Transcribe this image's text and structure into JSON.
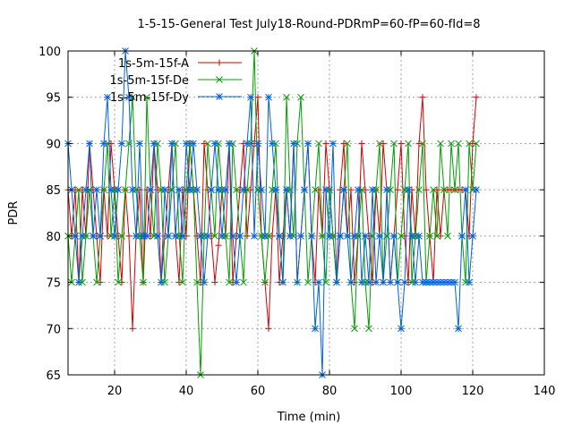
{
  "chart_data": {
    "type": "line",
    "title": "1-5-15-General Test July18-Round-PDRmP=60-fP=60-fId=8",
    "xlabel": "Time (min)",
    "ylabel": "PDR",
    "xlim": [
      7,
      140
    ],
    "ylim": [
      65,
      100
    ],
    "xticks": [
      20,
      40,
      60,
      80,
      100,
      120,
      140
    ],
    "yticks": [
      65,
      70,
      75,
      80,
      85,
      90,
      95,
      100
    ],
    "xtick_labels": [
      "20",
      "40",
      "60",
      "80",
      "100",
      "120",
      "140"
    ],
    "ytick_labels": [
      "65",
      "70",
      "75",
      "80",
      "85",
      "90",
      "95",
      "100"
    ],
    "grid": true,
    "legend_position": "top-left",
    "series": [
      {
        "name": "1s-5m-15f-A",
        "color": "#d40000",
        "marker": "plus",
        "x": [
          7,
          8,
          9,
          10,
          11,
          12,
          13,
          14,
          15,
          16,
          17,
          18,
          19,
          20,
          21,
          22,
          23,
          24,
          25,
          26,
          27,
          28,
          29,
          30,
          31,
          32,
          33,
          34,
          35,
          36,
          37,
          38,
          39,
          40,
          41,
          42,
          43,
          44,
          45,
          46,
          47,
          48,
          49,
          50,
          51,
          52,
          53,
          54,
          55,
          56,
          57,
          58,
          59,
          60,
          61,
          62,
          63,
          64,
          65,
          66,
          67,
          68,
          69,
          70,
          71,
          72,
          73,
          74,
          75,
          76,
          77,
          78,
          79,
          80,
          81,
          82,
          83,
          84,
          85,
          86,
          87,
          88,
          89,
          90,
          91,
          92,
          93,
          94,
          95,
          96,
          97,
          98,
          99,
          100,
          101,
          102,
          103,
          104,
          105,
          106,
          107,
          108,
          109,
          110,
          111,
          112,
          113,
          114,
          115,
          116,
          117,
          118,
          119,
          120,
          121
        ],
        "values": [
          85,
          80,
          85,
          75,
          85,
          80,
          90,
          85,
          80,
          75,
          85,
          80,
          90,
          85,
          80,
          75,
          85,
          80,
          70,
          80,
          85,
          75,
          85,
          80,
          90,
          85,
          75,
          80,
          85,
          90,
          80,
          75,
          85,
          80,
          90,
          85,
          80,
          75,
          90,
          85,
          80,
          75,
          79,
          85,
          80,
          90,
          75,
          80,
          85,
          90,
          80,
          85,
          90,
          95,
          80,
          75,
          70,
          80,
          85,
          75,
          80,
          85,
          80,
          90,
          75,
          80,
          85,
          90,
          80,
          75,
          85,
          80,
          90,
          85,
          80,
          75,
          85,
          90,
          80,
          85,
          75,
          80,
          90,
          85,
          80,
          75,
          85,
          80,
          90,
          85,
          75,
          80,
          85,
          90,
          80,
          75,
          85,
          80,
          90,
          95,
          85,
          80,
          75,
          85,
          80,
          85,
          85,
          85,
          85,
          85,
          85,
          85,
          80,
          90,
          95
        ]
      },
      {
        "name": "1s-5m-15f-De",
        "color": "#00a000",
        "marker": "x",
        "x": [
          7,
          8,
          9,
          10,
          11,
          12,
          13,
          14,
          15,
          16,
          17,
          18,
          19,
          20,
          21,
          22,
          23,
          24,
          25,
          26,
          27,
          28,
          29,
          30,
          31,
          32,
          33,
          34,
          35,
          36,
          37,
          38,
          39,
          40,
          41,
          42,
          43,
          44,
          45,
          46,
          47,
          48,
          49,
          50,
          51,
          52,
          53,
          54,
          55,
          56,
          57,
          58,
          59,
          60,
          61,
          62,
          63,
          64,
          65,
          66,
          67,
          68,
          69,
          70,
          71,
          72,
          73,
          74,
          75,
          76,
          77,
          78,
          79,
          80,
          81,
          82,
          83,
          84,
          85,
          86,
          87,
          88,
          89,
          90,
          91,
          92,
          93,
          94,
          95,
          96,
          97,
          98,
          99,
          100,
          101,
          102,
          103,
          104,
          105,
          106,
          107,
          108,
          109,
          110,
          111,
          112,
          113,
          114,
          115,
          116,
          117,
          118,
          119,
          120,
          121
        ],
        "values": [
          80,
          75,
          80,
          85,
          75,
          80,
          85,
          80,
          75,
          80,
          85,
          90,
          80,
          85,
          75,
          80,
          85,
          90,
          95,
          85,
          80,
          75,
          95,
          85,
          80,
          90,
          85,
          75,
          80,
          85,
          90,
          80,
          75,
          85,
          90,
          85,
          75,
          65,
          80,
          90,
          85,
          80,
          90,
          85,
          80,
          75,
          90,
          85,
          80,
          75,
          85,
          90,
          100,
          85,
          80,
          75,
          80,
          85,
          90,
          80,
          75,
          95,
          85,
          80,
          90,
          95,
          85,
          75,
          80,
          85,
          90,
          80,
          75,
          85,
          80,
          75,
          80,
          85,
          90,
          75,
          70,
          80,
          85,
          75,
          70,
          80,
          85,
          90,
          75,
          80,
          85,
          90,
          75,
          80,
          85,
          90,
          75,
          80,
          85,
          90,
          75,
          80,
          85,
          80,
          90,
          85,
          80,
          90,
          85,
          90,
          80,
          75,
          90,
          85,
          90
        ]
      },
      {
        "name": "1s-5m-15f-Dy",
        "color": "#0060e0",
        "marker": "star",
        "x": [
          7,
          8,
          9,
          10,
          11,
          12,
          13,
          14,
          15,
          16,
          17,
          18,
          19,
          20,
          21,
          22,
          23,
          24,
          25,
          26,
          27,
          28,
          29,
          30,
          31,
          32,
          33,
          34,
          35,
          36,
          37,
          38,
          39,
          40,
          41,
          42,
          43,
          44,
          45,
          46,
          47,
          48,
          49,
          50,
          51,
          52,
          53,
          54,
          55,
          56,
          57,
          58,
          59,
          60,
          61,
          62,
          63,
          64,
          65,
          66,
          67,
          68,
          69,
          70,
          71,
          72,
          73,
          74,
          75,
          76,
          77,
          78,
          79,
          80,
          81,
          82,
          83,
          84,
          85,
          86,
          87,
          88,
          89,
          90,
          91,
          92,
          93,
          94,
          95,
          96,
          97,
          98,
          99,
          100,
          101,
          102,
          103,
          104,
          105,
          106,
          107,
          108,
          109,
          110,
          111,
          112,
          113,
          114,
          115,
          116,
          117,
          118,
          119,
          120,
          121
        ],
        "values": [
          90,
          85,
          80,
          75,
          80,
          85,
          90,
          80,
          85,
          80,
          90,
          95,
          85,
          80,
          85,
          90,
          100,
          95,
          85,
          80,
          90,
          80,
          80,
          85,
          90,
          80,
          75,
          85,
          80,
          90,
          80,
          85,
          80,
          90,
          85,
          90,
          85,
          80,
          75,
          80,
          85,
          90,
          85,
          80,
          85,
          90,
          80,
          75,
          80,
          85,
          90,
          95,
          80,
          90,
          85,
          80,
          95,
          90,
          85,
          80,
          75,
          85,
          80,
          90,
          75,
          80,
          85,
          90,
          80,
          70,
          75,
          65,
          85,
          80,
          90,
          75,
          80,
          85,
          80,
          75,
          80,
          85,
          75,
          80,
          75,
          85,
          75,
          80,
          75,
          85,
          75,
          80,
          75,
          70,
          75,
          85,
          80,
          75,
          80,
          75,
          75,
          75,
          75,
          75,
          75,
          75,
          75,
          75,
          75,
          70,
          80,
          85,
          75,
          80,
          85
        ]
      }
    ]
  }
}
